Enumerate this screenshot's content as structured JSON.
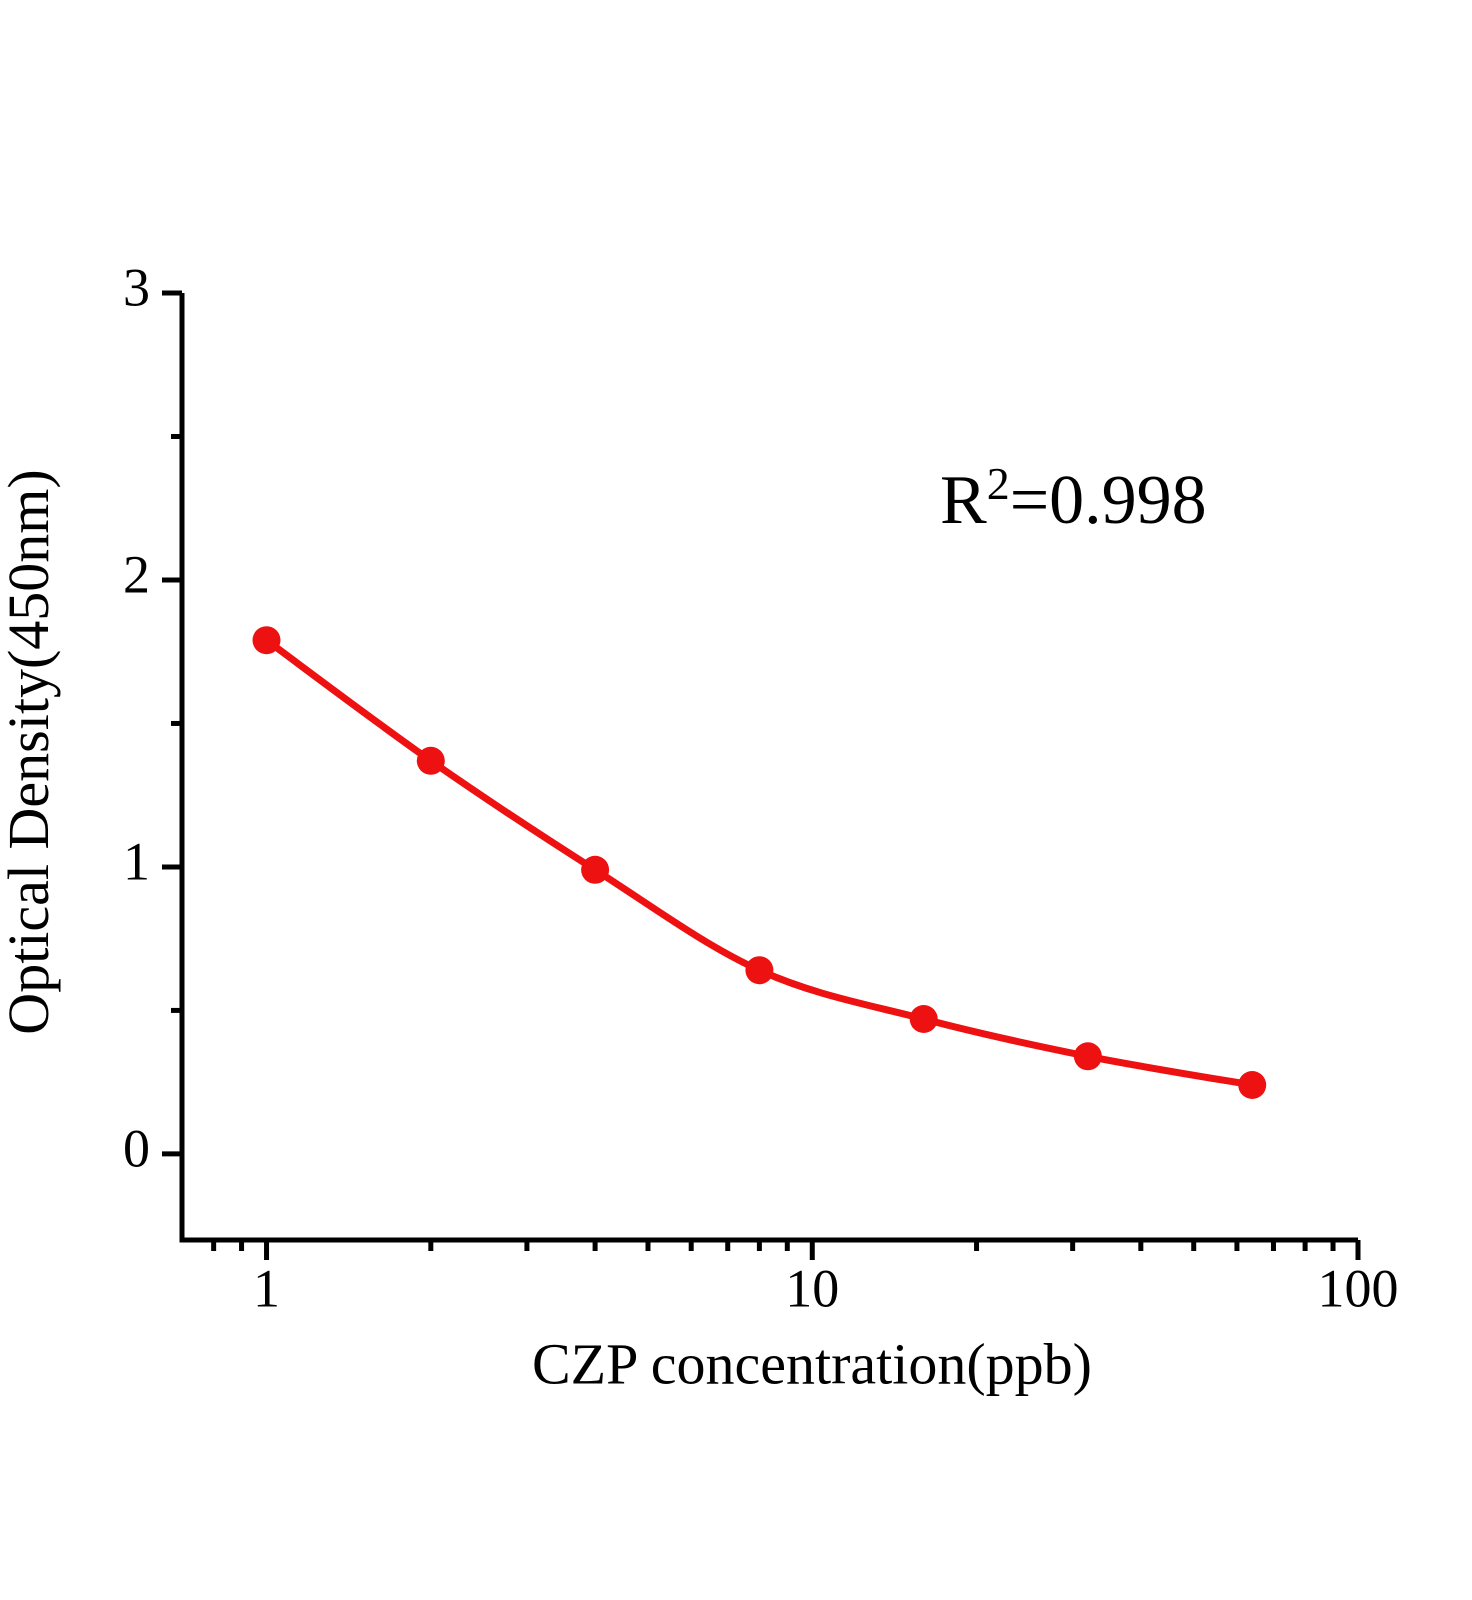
{
  "chart_data": {
    "type": "scatter",
    "title": "",
    "xlabel": "CZP concentration(ppb)",
    "ylabel": "Optical Density(450nm)",
    "x_scale": "log10",
    "y_scale": "linear",
    "xlim": [
      0.7,
      100
    ],
    "ylim": [
      -0.3,
      3.0
    ],
    "grid": false,
    "legend": "none",
    "x": [
      1,
      2,
      4,
      8,
      16,
      32,
      64
    ],
    "y": [
      1.79,
      1.37,
      0.99,
      0.64,
      0.47,
      0.34,
      0.24
    ],
    "marker": "filled-circle",
    "line": "smooth-fit-curve",
    "x_major_ticks": [
      {
        "value": 1,
        "label": "1"
      },
      {
        "value": 10,
        "label": "10"
      },
      {
        "value": 100,
        "label": "100"
      }
    ],
    "x_minor_ticks": [
      0.8,
      0.9,
      2,
      3,
      4,
      5,
      6,
      7,
      8,
      9,
      20,
      30,
      40,
      50,
      60,
      70,
      80,
      90
    ],
    "y_major_ticks": [
      {
        "value": 0,
        "label": "0"
      },
      {
        "value": 1,
        "label": "1"
      },
      {
        "value": 2,
        "label": "2"
      },
      {
        "value": 3,
        "label": "3"
      }
    ],
    "y_minor_ticks": [
      0.5,
      1.5,
      2.5
    ],
    "annotation": {
      "prefix": "R",
      "superscript": "2",
      "suffix": "=0.998"
    },
    "colors": {
      "series": "#ee1111",
      "axis": "#000000",
      "background": "#ffffff"
    }
  }
}
